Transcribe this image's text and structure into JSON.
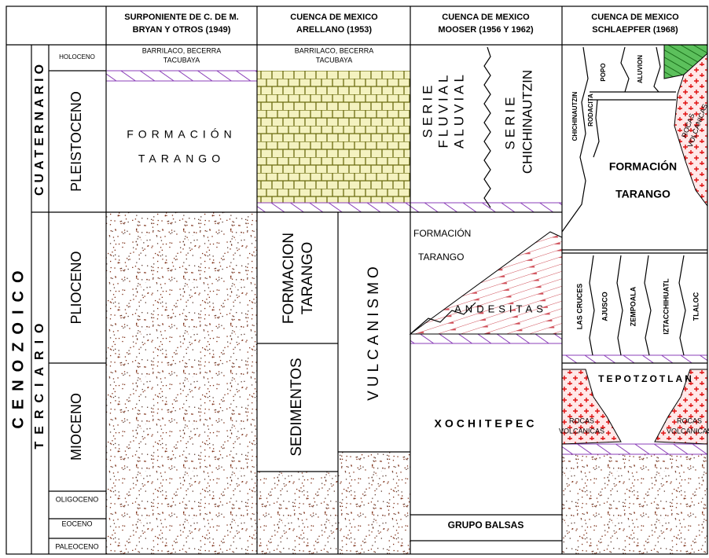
{
  "header": {
    "columns": [
      [
        "SURPONIENTE DE C. DE M.",
        "BRYAN Y OTROS (1949)"
      ],
      [
        "CUENCA DE MEXICO",
        "ARELLANO (1953)"
      ],
      [
        "CUENCA DE MEXICO",
        "MOOSER (1956 Y 1962)"
      ],
      [
        "CUENCA DE MEXICO",
        "SCHLAEPFER (1968)"
      ]
    ]
  },
  "time_scale": {
    "era": "CENOZOICO",
    "periods": [
      "CUATERNARIO",
      "TERCIARIO"
    ],
    "epochs": [
      "HOLOCENO",
      "PLEISTOCENO",
      "PLIOCENO",
      "MIOCENO",
      "OLIGOCENO",
      "EOCENO",
      "PALEOCENO"
    ]
  },
  "bryan": {
    "top": [
      "BARRILACO,  BECERRA",
      "TACUBAYA"
    ],
    "formation": [
      "FORMACIÓN",
      "TARANGO"
    ]
  },
  "arellano": {
    "top": [
      "BARRILACO,  BECERRA",
      "TACUBAYA"
    ],
    "tarango": [
      "FORMACION",
      "TARANGO"
    ],
    "sedimentos": "SEDIMENTOS",
    "vulcanismo": "VULCANISMO"
  },
  "mooser": {
    "serie_fluvial": [
      "SERIE",
      "FLUVIAL",
      "ALUVIAL"
    ],
    "serie_chichinautzin": [
      "SERIE",
      "CHICHINAUTZIN"
    ],
    "tarango": [
      "FORMACIÓN",
      "TARANGO"
    ],
    "andesitas": "ANDESITAS",
    "xochitepec": "XOCHITEPEC",
    "balsas": "GRUPO  BALSAS"
  },
  "schlaepfer": {
    "chichinautzin": "CHICHINAUTZIN",
    "rodacita": "RODACITA",
    "popo": "POPO",
    "aluvion": "ALUVION",
    "rocas_top": [
      "ROCAS",
      "VOLCANICAS"
    ],
    "tarango": [
      "FORMACIÓN",
      "TARANGO"
    ],
    "volcanoes": [
      "LAS CRUCES",
      "AJUSCO",
      "ZEMPOALA",
      "IZTACCHIHUATL",
      "TLALOC"
    ],
    "tepotzotlan": "TEPOTZOTLAN",
    "rocas_left": [
      "ROCAS",
      "VOLCANICAS"
    ],
    "rocas_right": [
      "ROCAS",
      "VOLCANICAS"
    ]
  }
}
